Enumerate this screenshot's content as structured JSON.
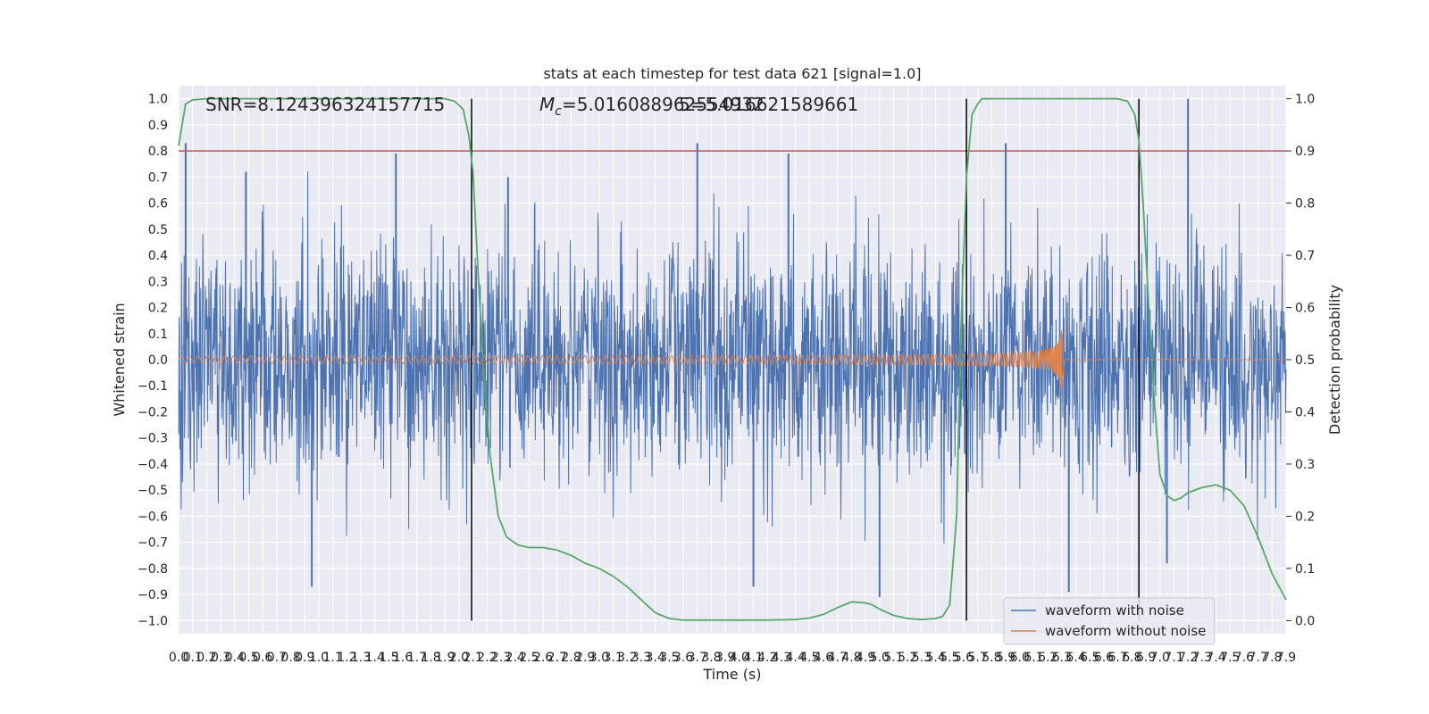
{
  "chart_data": {
    "type": "line",
    "title": "stats at each timestep for test data 621 [signal=1.0]",
    "xlabel": "Time (s)",
    "ylabel": "Whitened strain",
    "y2label": "Detection probability",
    "annotations": {
      "snr": "SNR=8.124396324157715",
      "mc_symbol": "M",
      "mc_sub": "c",
      "mc_value": "=5.016088962554932",
      "overlap": "5=5.016621589661"
    },
    "xlim": [
      0,
      7.9
    ],
    "ylim": [
      -1.05,
      1.05
    ],
    "y2lim": [
      -0.025,
      1.025
    ],
    "x_ticks": [
      0.0,
      0.1,
      0.2,
      0.3,
      0.4,
      0.5,
      0.6,
      0.7,
      0.8,
      0.9,
      1.0,
      1.1,
      1.2,
      1.3,
      1.4,
      1.5,
      1.6,
      1.7,
      1.8,
      1.9,
      2.0,
      2.1,
      2.2,
      2.3,
      2.4,
      2.5,
      2.6,
      2.7,
      2.8,
      2.9,
      3.0,
      3.1,
      3.2,
      3.3,
      3.4,
      3.5,
      3.6,
      3.7,
      3.8,
      3.9,
      4.0,
      4.1,
      4.2,
      4.3,
      4.4,
      4.5,
      4.6,
      4.7,
      4.8,
      4.9,
      5.0,
      5.1,
      5.2,
      5.3,
      5.4,
      5.5,
      5.6,
      5.7,
      5.8,
      5.9,
      6.0,
      6.1,
      6.2,
      6.3,
      6.4,
      6.5,
      6.6,
      6.7,
      6.8,
      6.9,
      7.0,
      7.1,
      7.2,
      7.3,
      7.4,
      7.5,
      7.6,
      7.7,
      7.8,
      7.9
    ],
    "x_tick_labels": [
      "0.0",
      "0.1",
      "0.2",
      "0.3",
      "0.4",
      "0.5",
      "0.6",
      "0.7",
      "0.8",
      "0.9",
      "1.0",
      "1.1",
      "1.2",
      "1.3",
      "1.4",
      "1.5",
      "1.6",
      "1.7",
      "1.8",
      "1.9",
      "2.0",
      "2.1",
      "2.2",
      "2.3",
      "2.4",
      "2.5",
      "2.6",
      "2.7",
      "2.8",
      "2.9",
      "3.0",
      "3.1",
      "3.2",
      "3.3",
      "3.4",
      "3.5",
      "3.6",
      "3.7",
      "3.8",
      "3.9",
      "4.0",
      "4.1",
      "4.2",
      "4.3",
      "4.4",
      "4.5",
      "4.6",
      "4.7",
      "4.8",
      "4.9",
      "5.0",
      "5.1",
      "5.2",
      "5.3",
      "5.4",
      "5.5",
      "5.6",
      "5.7",
      "5.8",
      "5.9",
      "6.0",
      "6.1",
      "6.2",
      "6.3",
      "6.4",
      "6.5",
      "6.6",
      "6.7",
      "6.8",
      "6.9",
      "7.0",
      "7.1",
      "7.2",
      "7.3",
      "7.4",
      "7.5",
      "7.6",
      "7.7",
      "7.8",
      "7.9"
    ],
    "y_ticks": [
      -1.0,
      -0.9,
      -0.8,
      -0.7,
      -0.6,
      -0.5,
      -0.4,
      -0.3,
      -0.2,
      -0.1,
      0.0,
      0.1,
      0.2,
      0.3,
      0.4,
      0.5,
      0.6,
      0.7,
      0.8,
      0.9,
      1.0
    ],
    "y_tick_labels": [
      "−1.0",
      "−0.9",
      "−0.8",
      "−0.7",
      "−0.6",
      "−0.5",
      "−0.4",
      "−0.3",
      "−0.2",
      "−0.1",
      "0.0",
      "0.1",
      "0.2",
      "0.3",
      "0.4",
      "0.5",
      "0.6",
      "0.7",
      "0.8",
      "0.9",
      "1.0"
    ],
    "y2_ticks": [
      0.0,
      0.1,
      0.2,
      0.3,
      0.4,
      0.5,
      0.6,
      0.7,
      0.8,
      0.9,
      1.0
    ],
    "y2_tick_labels": [
      "0.0",
      "0.1",
      "0.2",
      "0.3",
      "0.4",
      "0.5",
      "0.6",
      "0.7",
      "0.8",
      "0.9",
      "1.0"
    ],
    "threshold": 0.9,
    "vertical_lines": [
      2.09,
      5.62,
      6.85
    ],
    "detection_probability": {
      "x": [
        0.0,
        0.05,
        0.1,
        0.2,
        0.4,
        0.8,
        1.2,
        1.6,
        1.8,
        1.9,
        1.97,
        2.03,
        2.07,
        2.1,
        2.13,
        2.17,
        2.22,
        2.28,
        2.34,
        2.42,
        2.5,
        2.6,
        2.7,
        2.8,
        2.9,
        3.0,
        3.1,
        3.2,
        3.3,
        3.4,
        3.5,
        3.6,
        3.7,
        3.8,
        4.0,
        4.2,
        4.4,
        4.5,
        4.6,
        4.7,
        4.8,
        4.9,
        4.95,
        5.0,
        5.1,
        5.2,
        5.3,
        5.4,
        5.45,
        5.5,
        5.55,
        5.58,
        5.62,
        5.66,
        5.7,
        5.73,
        5.8,
        6.0,
        6.4,
        6.6,
        6.7,
        6.77,
        6.82,
        6.85,
        6.88,
        6.92,
        6.96,
        7.0,
        7.05,
        7.1,
        7.15,
        7.2,
        7.3,
        7.4,
        7.5,
        7.6,
        7.7,
        7.8,
        7.9
      ],
      "y": [
        0.91,
        0.99,
        0.998,
        1.0,
        1.0,
        1.0,
        1.0,
        1.0,
        1.0,
        1.0,
        0.995,
        0.98,
        0.93,
        0.86,
        0.7,
        0.5,
        0.32,
        0.2,
        0.16,
        0.145,
        0.14,
        0.14,
        0.135,
        0.125,
        0.11,
        0.1,
        0.085,
        0.065,
        0.04,
        0.015,
        0.004,
        0.001,
        0.001,
        0.001,
        0.001,
        0.001,
        0.002,
        0.005,
        0.012,
        0.025,
        0.036,
        0.034,
        0.03,
        0.022,
        0.01,
        0.004,
        0.002,
        0.004,
        0.008,
        0.03,
        0.2,
        0.55,
        0.85,
        0.97,
        0.99,
        1.0,
        1.0,
        1.0,
        1.0,
        1.0,
        1.0,
        0.995,
        0.97,
        0.92,
        0.8,
        0.6,
        0.42,
        0.28,
        0.24,
        0.23,
        0.235,
        0.245,
        0.255,
        0.26,
        0.25,
        0.22,
        0.16,
        0.09,
        0.04
      ]
    },
    "series": [
      {
        "name": "waveform with noise",
        "color": "#4c72b0"
      },
      {
        "name": "waveform without noise",
        "color": "#dd8452"
      }
    ],
    "colors": {
      "probability": "#55a868",
      "threshold": "#c44e52",
      "vertical_line": "#000000",
      "plot_bg": "#eaeaf2",
      "grid": "#ffffff"
    },
    "legend": "bottom-right"
  }
}
